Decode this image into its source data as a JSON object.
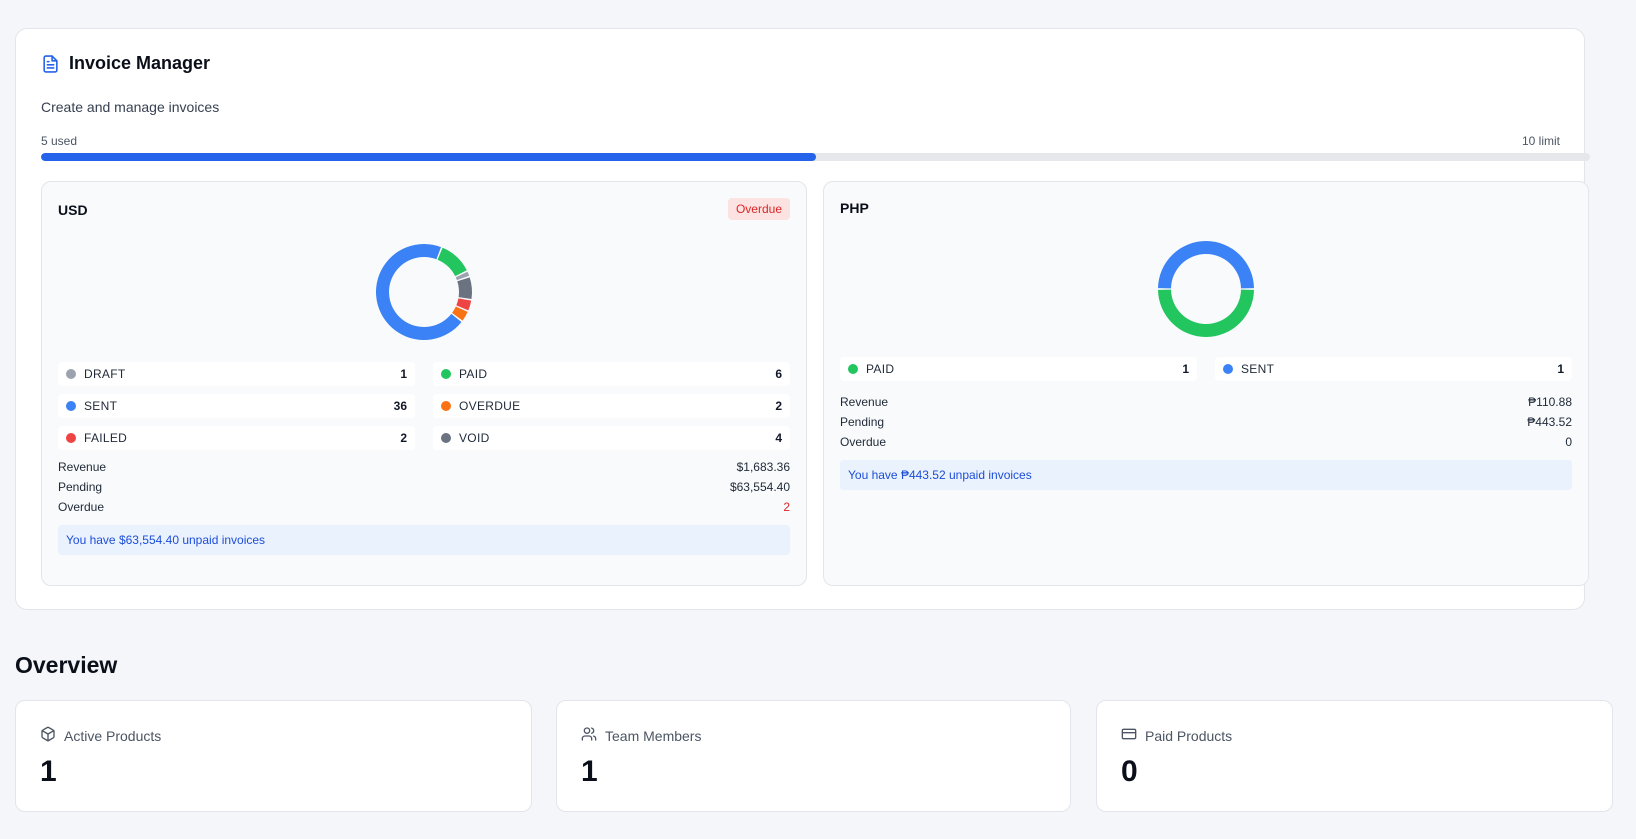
{
  "invoice_manager": {
    "title": "Invoice Manager",
    "title_icon": "document-icon",
    "subtitle": "Create and manage invoices",
    "usage": {
      "used_label": "5 used",
      "limit_label": "10 limit",
      "used": 5,
      "limit": 10
    }
  },
  "currencies": [
    {
      "code": "USD",
      "badge": "Overdue",
      "legend": [
        {
          "label": "DRAFT",
          "count": "1",
          "color": "#9ca3af"
        },
        {
          "label": "PAID",
          "count": "6",
          "color": "#22c55e"
        },
        {
          "label": "SENT",
          "count": "36",
          "color": "#3b82f6"
        },
        {
          "label": "OVERDUE",
          "count": "2",
          "color": "#f97316"
        },
        {
          "label": "FAILED",
          "count": "2",
          "color": "#ef4444"
        },
        {
          "label": "VOID",
          "count": "4",
          "color": "#6b7280"
        }
      ],
      "stats": {
        "revenue_label": "Revenue",
        "revenue": "$1,683.36",
        "pending_label": "Pending",
        "pending": "$63,554.40",
        "overdue_label": "Overdue",
        "overdue": "2"
      },
      "notice": "You have $63,554.40 unpaid invoices"
    },
    {
      "code": "PHP",
      "legend": [
        {
          "label": "PAID",
          "count": "1",
          "color": "#22c55e"
        },
        {
          "label": "SENT",
          "count": "1",
          "color": "#3b82f6"
        }
      ],
      "stats": {
        "revenue_label": "Revenue",
        "revenue": "₱110.88",
        "pending_label": "Pending",
        "pending": "₱443.52",
        "overdue_label": "Overdue",
        "overdue": "0"
      },
      "notice": "You have ₱443.52 unpaid invoices"
    }
  ],
  "overview": {
    "title": "Overview",
    "cards": [
      {
        "label": "Active Products",
        "value": "1",
        "icon": "box-icon"
      },
      {
        "label": "Team Members",
        "value": "1",
        "icon": "users-icon"
      },
      {
        "label": "Paid Products",
        "value": "0",
        "icon": "credit-card-icon"
      }
    ]
  },
  "chart_data": [
    {
      "type": "pie",
      "currency": "USD",
      "categories": [
        "DRAFT",
        "PAID",
        "SENT",
        "OVERDUE",
        "FAILED",
        "VOID"
      ],
      "values": [
        1,
        6,
        36,
        2,
        2,
        4
      ],
      "colors": [
        "#9ca3af",
        "#22c55e",
        "#3b82f6",
        "#f97316",
        "#ef4444",
        "#6b7280"
      ],
      "donut": true
    },
    {
      "type": "pie",
      "currency": "PHP",
      "categories": [
        "PAID",
        "SENT"
      ],
      "values": [
        1,
        1
      ],
      "colors": [
        "#22c55e",
        "#3b82f6"
      ],
      "donut": true
    }
  ]
}
